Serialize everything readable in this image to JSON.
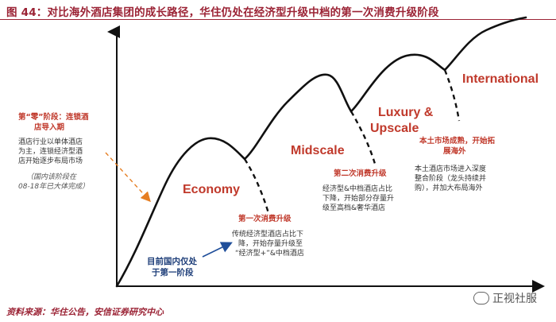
{
  "title": "图 44：对比海外酒店集团的成长路径，华住仍处在经济型升级中档的第一次消费升级阶段",
  "source": "资料来源：华住公告，安信证券研究中心",
  "watermark": "正视社服",
  "stages": {
    "economy": "Economy",
    "midscale": "Midscale",
    "luxury_line1": "Luxury &",
    "luxury_line2": "Upscale",
    "international": "International"
  },
  "notes": {
    "zero_title": [
      "第“零”阶段：连锁酒",
      "店导入期"
    ],
    "zero_body": [
      "酒店行业以单体酒店",
      "为主，连锁经济型酒",
      "店开始逐步布局市场"
    ],
    "zero_italic": [
      "（国内该阶段在",
      "08-18年已大体完成）"
    ],
    "first_title": "第一次消费升级",
    "first_body": [
      "传统经济型酒店占比下",
      "降，开始存量升级至",
      "“经济型+”&中档酒店"
    ],
    "current": [
      "目前国内仅处",
      "于第一阶段"
    ],
    "second_title": "第二次消费升级",
    "second_body": [
      "经济型&中档酒店占比",
      "下降，开始部分存量升",
      "级至高档&奢华酒店"
    ],
    "mature_title": [
      "本土市场成熟，开始拓",
      "展海外"
    ],
    "mature_body": [
      "本土酒店市场进入深度",
      "整合阶段（龙头持续并",
      "购），并加大布局海外"
    ]
  },
  "colors": {
    "title_red": "#9b2335",
    "stage_red": "#c0392b",
    "current_blue": "#1f3f7a",
    "arrow_orange": "#e67e22",
    "curve_black": "#111111"
  }
}
